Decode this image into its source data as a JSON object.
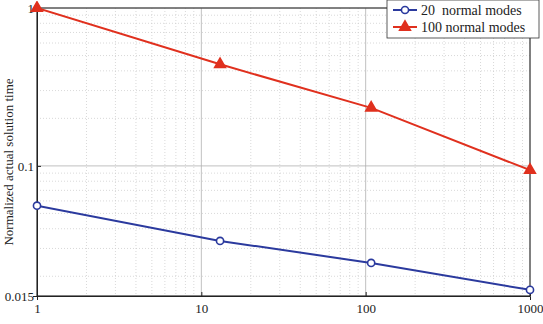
{
  "chart_data": {
    "type": "line",
    "y_label": "Normalized actual solution time",
    "x": [
      1,
      13,
      108,
      1000
    ],
    "series": [
      {
        "name": "20  normal modes",
        "color": "#2b3a9e",
        "marker": "circle",
        "line_style": "solid",
        "values": [
          0.056,
          0.0335,
          0.0243,
          0.0164
        ]
      },
      {
        "name": "100 normal modes",
        "color": "#e0301e",
        "marker": "triangle",
        "line_style": "solid",
        "values": [
          1,
          0.44,
          0.233,
          0.094
        ]
      }
    ],
    "xlim": [
      1,
      1000
    ],
    "xticks": [
      1,
      10,
      100,
      1000
    ],
    "ylim": [
      0.015,
      1
    ],
    "yticks": [
      0.015,
      0.1,
      1
    ],
    "log": true,
    "grid": true,
    "legend": "upper right"
  }
}
